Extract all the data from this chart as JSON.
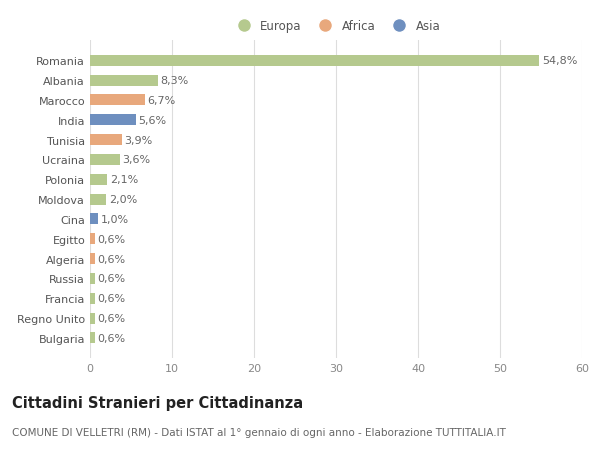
{
  "countries": [
    "Romania",
    "Albania",
    "Marocco",
    "India",
    "Tunisia",
    "Ucraina",
    "Polonia",
    "Moldova",
    "Cina",
    "Egitto",
    "Algeria",
    "Russia",
    "Francia",
    "Regno Unito",
    "Bulgaria"
  ],
  "values": [
    54.8,
    8.3,
    6.7,
    5.6,
    3.9,
    3.6,
    2.1,
    2.0,
    1.0,
    0.6,
    0.6,
    0.6,
    0.6,
    0.6,
    0.6
  ],
  "labels": [
    "54,8%",
    "8,3%",
    "6,7%",
    "5,6%",
    "3,9%",
    "3,6%",
    "2,1%",
    "2,0%",
    "1,0%",
    "0,6%",
    "0,6%",
    "0,6%",
    "0,6%",
    "0,6%",
    "0,6%"
  ],
  "colors": [
    "#b5c98e",
    "#b5c98e",
    "#e8a87c",
    "#6e8fbf",
    "#e8a87c",
    "#b5c98e",
    "#b5c98e",
    "#b5c98e",
    "#6e8fbf",
    "#e8a87c",
    "#e8a87c",
    "#b5c98e",
    "#b5c98e",
    "#b5c98e",
    "#b5c98e"
  ],
  "legend_labels": [
    "Europa",
    "Africa",
    "Asia"
  ],
  "legend_colors": [
    "#b5c98e",
    "#e8a87c",
    "#6e8fbf"
  ],
  "xlim": [
    0,
    60
  ],
  "xticks": [
    0,
    10,
    20,
    30,
    40,
    50,
    60
  ],
  "title": "Cittadini Stranieri per Cittadinanza",
  "subtitle": "COMUNE DI VELLETRI (RM) - Dati ISTAT al 1° gennaio di ogni anno - Elaborazione TUTTITALIA.IT",
  "bg_color": "#ffffff",
  "grid_color": "#dddddd",
  "bar_height": 0.55,
  "label_fontsize": 8,
  "tick_fontsize": 8,
  "title_fontsize": 10.5,
  "subtitle_fontsize": 7.5
}
